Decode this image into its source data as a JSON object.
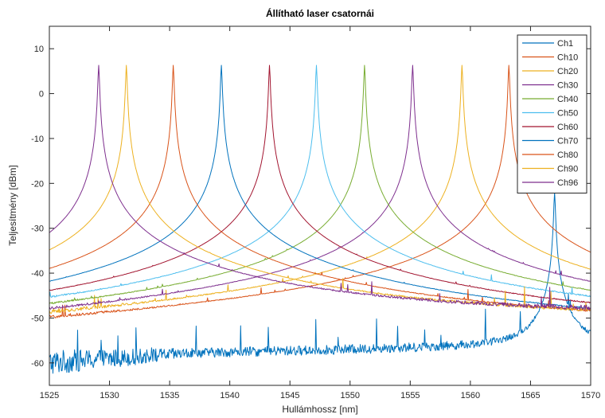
{
  "chart_data": {
    "type": "line",
    "title": "Állítható laser csatornái",
    "xlabel": "Hullámhossz [nm]",
    "ylabel": "Teljesítmény [dBm]",
    "xlim": [
      1525,
      1570
    ],
    "ylim": [
      -65,
      15
    ],
    "xticks": [
      1525,
      1530,
      1535,
      1540,
      1545,
      1550,
      1555,
      1560,
      1565,
      1570
    ],
    "yticks": [
      -60,
      -50,
      -40,
      -30,
      -20,
      -10,
      0,
      10
    ],
    "grid": false,
    "legend_position": "top-right",
    "series": [
      {
        "name": "Ch1",
        "color": "#0072BD",
        "peak_x": 1567.0,
        "peak_y": -22.0,
        "noise_start": -58.5,
        "noise_end": -56.0
      },
      {
        "name": "Ch10",
        "color": "#D95319",
        "peak_x": 1563.2,
        "peak_y": 6.3,
        "noise_start": -57.5,
        "noise_end": -54.5
      },
      {
        "name": "Ch20",
        "color": "#EDB120",
        "peak_x": 1559.3,
        "peak_y": 6.3,
        "noise_start": -55.0,
        "noise_end": -52.5
      },
      {
        "name": "Ch30",
        "color": "#7E2F8E",
        "peak_x": 1555.2,
        "peak_y": 6.3,
        "noise_start": -56.0,
        "noise_end": -53.5
      },
      {
        "name": "Ch40",
        "color": "#77AC30",
        "peak_x": 1551.2,
        "peak_y": 6.3,
        "noise_start": -56.5,
        "noise_end": -54.0
      },
      {
        "name": "Ch50",
        "color": "#4DBEEE",
        "peak_x": 1547.2,
        "peak_y": 6.3,
        "noise_start": -55.5,
        "noise_end": -53.0
      },
      {
        "name": "Ch60",
        "color": "#A2142F",
        "peak_x": 1543.3,
        "peak_y": 6.3,
        "noise_start": -58.0,
        "noise_end": -55.0
      },
      {
        "name": "Ch70",
        "color": "#0072BD",
        "peak_x": 1539.3,
        "peak_y": 6.3,
        "noise_start": -59.5,
        "noise_end": -56.5
      },
      {
        "name": "Ch80",
        "color": "#D95319",
        "peak_x": 1535.3,
        "peak_y": 6.3,
        "noise_start": -57.0,
        "noise_end": -54.5
      },
      {
        "name": "Ch90",
        "color": "#EDB120",
        "peak_x": 1531.4,
        "peak_y": 6.3,
        "noise_start": -54.5,
        "noise_end": -52.0
      },
      {
        "name": "Ch96",
        "color": "#7E2F8E",
        "peak_x": 1529.1,
        "peak_y": 6.3,
        "noise_start": -53.5,
        "noise_end": -50.5
      }
    ]
  }
}
